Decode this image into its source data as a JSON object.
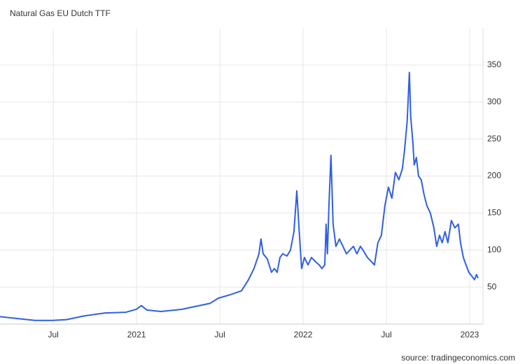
{
  "chart_data": {
    "type": "line",
    "title": "Natural Gas EU Dutch TTF",
    "source": "source: tradingeconomics.com",
    "xlim": [
      2020.18,
      2023.08
    ],
    "xticks": [
      {
        "value": 2020.5,
        "label": "Jul"
      },
      2021,
      {
        "value": 2021.5,
        "label": "Jul"
      },
      2022,
      {
        "value": 2022.5,
        "label": "Jul"
      },
      2023
    ],
    "ylim": [
      0,
      400
    ],
    "yticks": [
      50,
      100,
      150,
      200,
      250,
      300,
      350
    ],
    "grid": true,
    "series": [
      {
        "color": "#2e5fe6",
        "x": [
          2020.18,
          2020.306,
          2020.39,
          2020.495,
          2020.579,
          2020.684,
          2020.81,
          2020.936,
          2020.999,
          2021.029,
          2021.062,
          2021.146,
          2021.272,
          2021.356,
          2021.441,
          2021.491,
          2021.567,
          2021.63,
          2021.672,
          2021.705,
          2021.735,
          2021.747,
          2021.76,
          2021.785,
          2021.81,
          2021.827,
          2021.844,
          2021.861,
          2021.877,
          2021.903,
          2021.924,
          2021.945,
          2021.962,
          2021.978,
          2021.991,
          2022.008,
          2022.029,
          2022.05,
          2022.071,
          2022.096,
          2022.113,
          2022.13,
          2022.138,
          2022.146,
          2022.155,
          2022.167,
          2022.18,
          2022.197,
          2022.218,
          2022.239,
          2022.26,
          2022.281,
          2022.302,
          2022.323,
          2022.344,
          2022.365,
          2022.386,
          2022.407,
          2022.428,
          2022.449,
          2022.47,
          2022.491,
          2022.512,
          2022.533,
          2022.554,
          2022.575,
          2022.596,
          2022.609,
          2022.625,
          2022.638,
          2022.646,
          2022.659,
          2022.667,
          2022.68,
          2022.693,
          2022.709,
          2022.726,
          2022.743,
          2022.764,
          2022.785,
          2022.802,
          2022.819,
          2022.835,
          2022.852,
          2022.869,
          2022.89,
          2022.911,
          2022.932,
          2022.945,
          2022.962,
          2022.978,
          2022.995,
          2023.012,
          2023.029,
          2023.041,
          2023.05
        ],
        "values": [
          10,
          7,
          5,
          5,
          6,
          11,
          15,
          16,
          20,
          25,
          19,
          17,
          20,
          24,
          28,
          35,
          40,
          45,
          60,
          75,
          95,
          115,
          95,
          88,
          70,
          75,
          70,
          90,
          95,
          92,
          100,
          125,
          180,
          120,
          75,
          90,
          80,
          90,
          85,
          80,
          75,
          80,
          135,
          95,
          160,
          228,
          135,
          105,
          115,
          105,
          95,
          100,
          105,
          95,
          105,
          98,
          90,
          85,
          80,
          110,
          120,
          160,
          185,
          170,
          205,
          195,
          210,
          235,
          275,
          340,
          280,
          245,
          215,
          225,
          200,
          195,
          175,
          160,
          150,
          130,
          105,
          120,
          110,
          125,
          110,
          140,
          130,
          135,
          110,
          90,
          80,
          70,
          65,
          60,
          67,
          62
        ]
      }
    ]
  }
}
